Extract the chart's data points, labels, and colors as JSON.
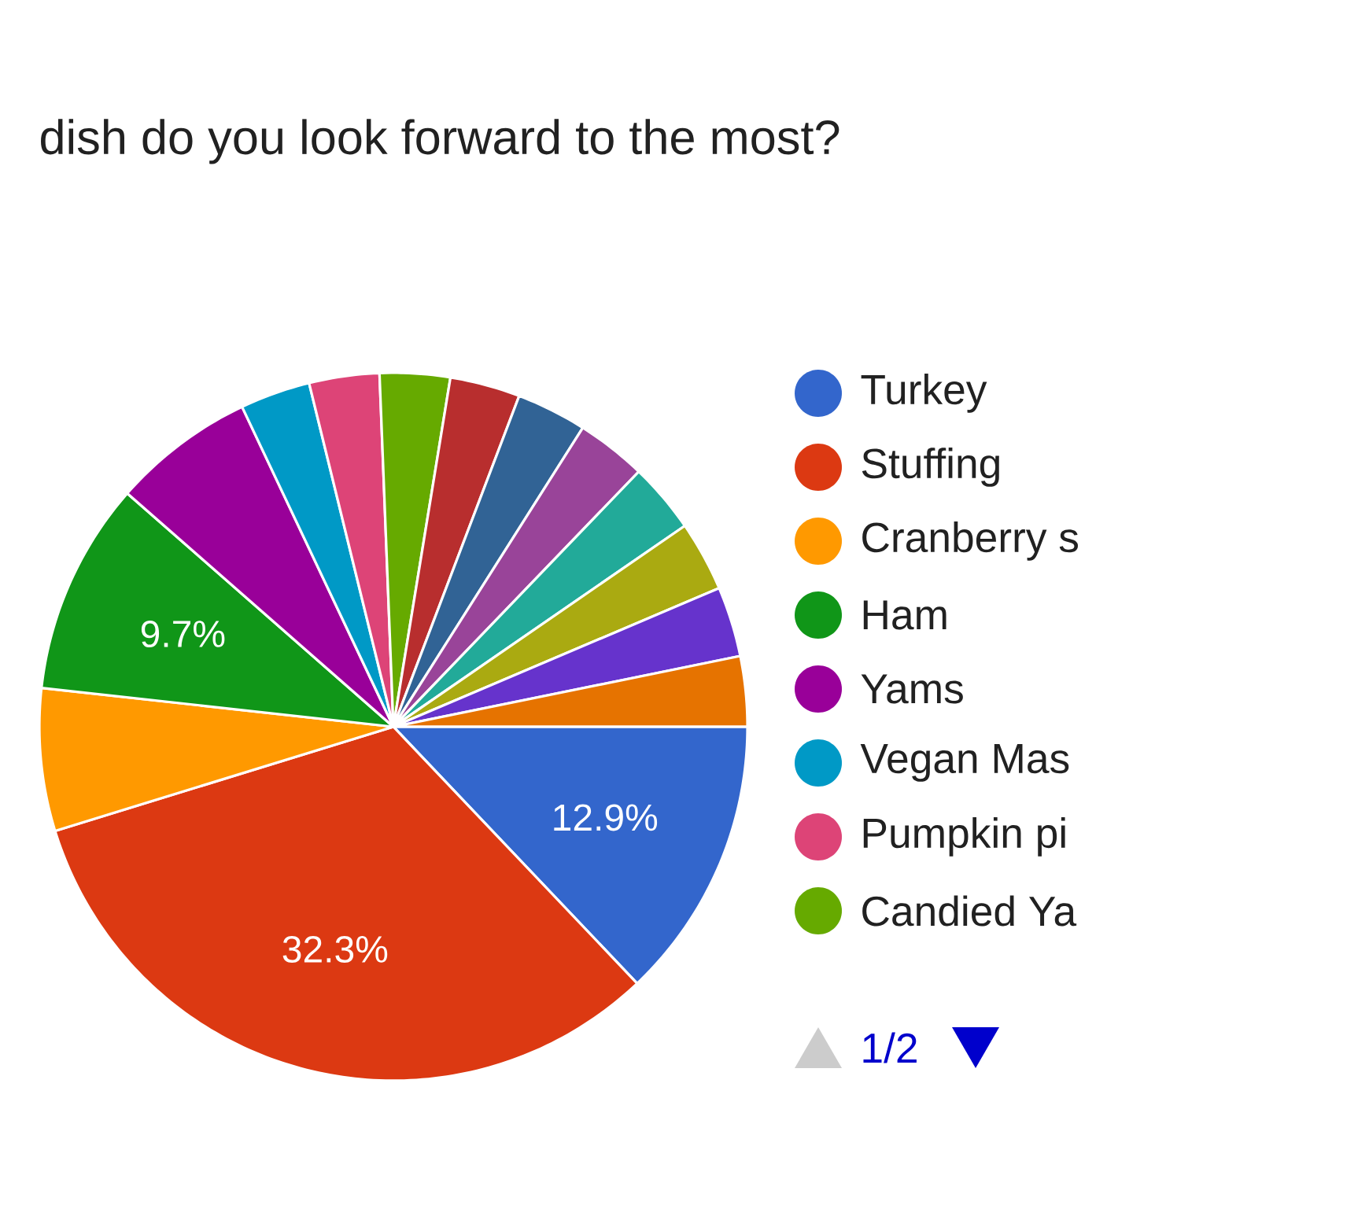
{
  "chart_data": {
    "type": "pie",
    "title": "dish do you look forward to the most?",
    "categories": [
      "Turkey",
      "Stuffing",
      "Cranberry s",
      "Ham",
      "Yams",
      "Vegan Mas",
      "Pumpkin pi",
      "Candied Ya",
      null,
      null,
      null,
      null,
      null,
      null,
      null
    ],
    "values": [
      12.9,
      32.3,
      6.5,
      9.7,
      6.5,
      3.2,
      3.2,
      3.2,
      3.2,
      3.2,
      3.2,
      3.2,
      3.2,
      3.2,
      3.2
    ],
    "colors": [
      "#3366cc",
      "#dc3912",
      "#ff9900",
      "#109618",
      "#990099",
      "#0099c6",
      "#dd4477",
      "#66aa00",
      "#b82e2e",
      "#316395",
      "#994499",
      "#22aa99",
      "#aaaa11",
      "#6633cc",
      "#e67300"
    ],
    "value_labels": [
      "12.9%",
      "32.3%",
      null,
      "9.7%",
      null,
      null,
      null,
      null,
      null,
      null,
      null,
      null,
      null,
      null,
      null
    ],
    "legend": "right",
    "annotations": [
      "1/2"
    ]
  }
}
